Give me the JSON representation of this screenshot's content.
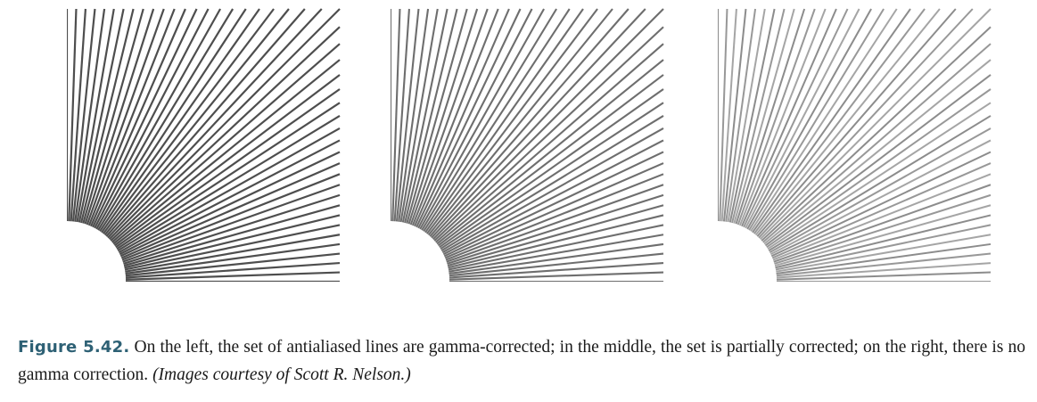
{
  "figure": {
    "panels": [
      {
        "id": "left",
        "description_color": "#444444"
      },
      {
        "id": "middle",
        "description_color": "#555555"
      },
      {
        "id": "right",
        "description_color": "#666666"
      }
    ],
    "caption": {
      "label": "Figure 5.42.",
      "text": "On the left, the set of antialiased lines are gamma-corrected; in the middle, the set is partially corrected; on the right, there is no gamma correction.",
      "credit": "(Images courtesy of Scott R. Nelson.)"
    },
    "colors": {
      "caption_label": "#2e6175",
      "caption_text": "#1a1a1a"
    }
  }
}
